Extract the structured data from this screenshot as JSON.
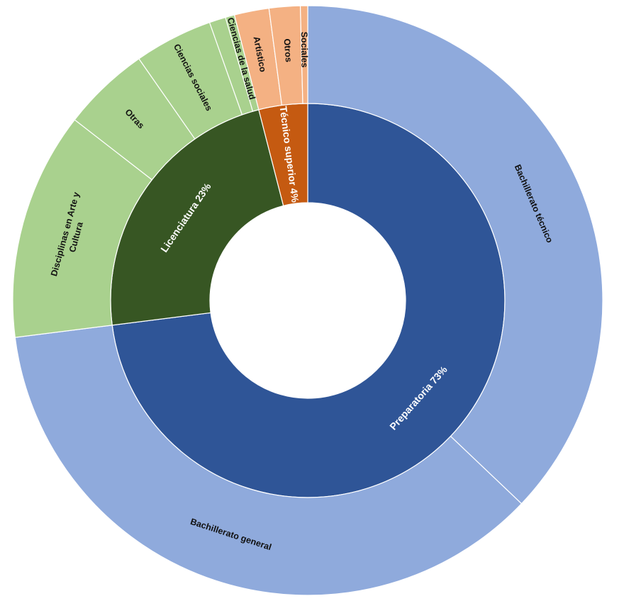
{
  "chart_data": {
    "type": "sunburst",
    "title": "",
    "inner": [
      {
        "label": "Preparatoria 73%",
        "value": 73,
        "color": "#2f5597"
      },
      {
        "label": "Licenciatura 23%",
        "value": 23,
        "color": "#375623"
      },
      {
        "label": "Técnico superior 4%",
        "value": 4,
        "color": "#c55a11"
      }
    ],
    "outer": [
      {
        "label": "Bachillerato técnico",
        "value": 37.1,
        "parent": "Preparatoria 73%",
        "color": "#8faadc"
      },
      {
        "label": "Bachillerato general",
        "value": 35.9,
        "parent": "Preparatoria 73%",
        "color": "#8faadc"
      },
      {
        "label": "Disciplinas en Arte y Cultura",
        "lines": [
          "Disciplinas en Arte y",
          "Cultura"
        ],
        "value": 12.5,
        "parent": "Licenciatura 23%",
        "color": "#a9d18e"
      },
      {
        "label": "Otras",
        "value": 4.8,
        "parent": "Licenciatura 23%",
        "color": "#a9d18e"
      },
      {
        "label": "Ciencias sociales",
        "value": 4.3,
        "parent": "Licenciatura 23%",
        "color": "#a9d18e"
      },
      {
        "label": "",
        "value": 0.9,
        "parent": "Licenciatura 23%",
        "color": "#a9d18e"
      },
      {
        "label": "Ciencias de la salud",
        "value": 0.5,
        "parent": "Licenciatura 23%",
        "color": "#a9d18e"
      },
      {
        "label": "Artístico",
        "value": 1.9,
        "parent": "Técnico superior 4%",
        "color": "#f4b183"
      },
      {
        "label": "Otros",
        "value": 1.7,
        "parent": "Técnico superior 4%",
        "color": "#f4b183"
      },
      {
        "label": "Sociales",
        "value": 0.4,
        "parent": "Técnico superior 4%",
        "color": "#f4b183"
      }
    ]
  }
}
